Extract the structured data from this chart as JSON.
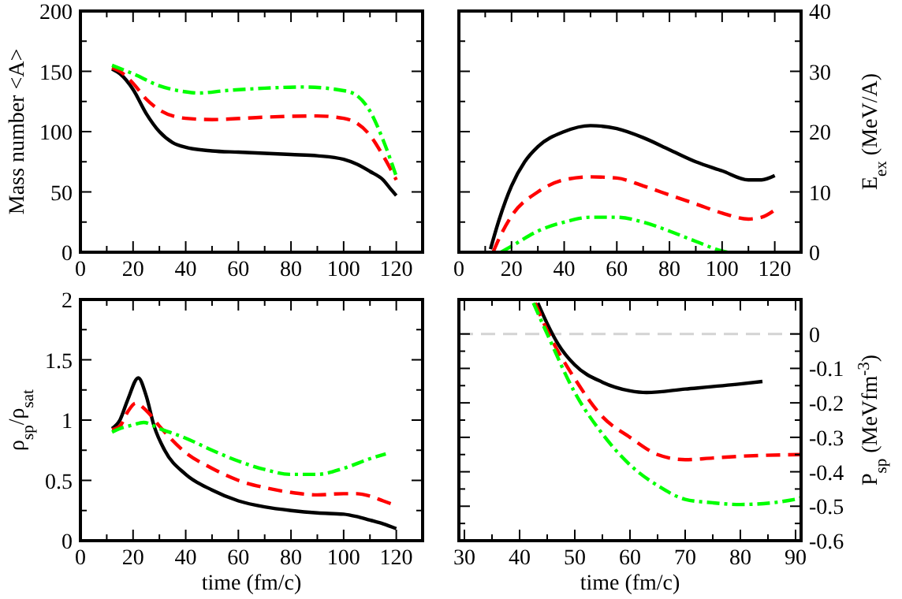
{
  "chart_data": [
    {
      "type": "line",
      "ylabel": "Mass number <A>",
      "xlim": [
        0,
        130
      ],
      "xticks": [
        0,
        20,
        40,
        60,
        80,
        100,
        120
      ],
      "ylim": [
        0,
        200
      ],
      "yticks": [
        0,
        50,
        100,
        150,
        200
      ],
      "grid": false,
      "series": [
        {
          "color": "#000000",
          "line_style": "solid",
          "x": [
            12,
            15,
            20,
            25,
            30,
            35,
            40,
            50,
            60,
            80,
            90,
            100,
            105,
            110,
            115,
            118,
            120
          ],
          "values": [
            152,
            148,
            135,
            115,
            100,
            91,
            87,
            84,
            83,
            81,
            80,
            77,
            73,
            67,
            60,
            52,
            47
          ]
        },
        {
          "color": "#ff0000",
          "line_style": "dashed",
          "x": [
            12,
            15,
            20,
            25,
            30,
            40,
            50,
            70,
            90,
            100,
            105,
            110,
            115,
            120
          ],
          "values": [
            153,
            150,
            140,
            127,
            118,
            111,
            110,
            112,
            113,
            111,
            107,
            97,
            80,
            60
          ]
        },
        {
          "color": "#00ff00",
          "line_style": "dashdot",
          "x": [
            12,
            20,
            30,
            40,
            45,
            55,
            70,
            85,
            100,
            105,
            110,
            115,
            120
          ],
          "values": [
            155,
            148,
            138,
            133,
            132,
            134,
            136,
            137,
            134,
            130,
            117,
            93,
            63
          ]
        }
      ]
    },
    {
      "type": "line",
      "y2label": "E$_{ex}$ (MeV/A)",
      "xlim": [
        0,
        130
      ],
      "xticks": [
        0,
        20,
        40,
        60,
        80,
        100,
        120
      ],
      "y2lim": [
        0,
        40
      ],
      "y2ticks": [
        0,
        10,
        20,
        30,
        40
      ],
      "grid": false,
      "series": [
        {
          "color": "#000000",
          "line_style": "solid",
          "axis": "y2",
          "x": [
            12,
            15,
            20,
            25,
            30,
            40,
            50,
            60,
            70,
            80,
            90,
            100,
            110,
            115,
            120
          ],
          "values": [
            0.5,
            5,
            11,
            15,
            17.5,
            20,
            21,
            20.5,
            19,
            17,
            15,
            13.5,
            12,
            12,
            12.7
          ]
        },
        {
          "color": "#ff0000",
          "line_style": "dashed",
          "axis": "y2",
          "x": [
            13,
            15,
            20,
            30,
            40,
            50,
            60,
            70,
            80,
            90,
            100,
            110,
            115,
            120
          ],
          "values": [
            0,
            2,
            6,
            10,
            12,
            12.5,
            12.3,
            11,
            9.5,
            8,
            6.5,
            5.5,
            5.8,
            7
          ]
        },
        {
          "color": "#00ff00",
          "line_style": "dashdot",
          "axis": "y2",
          "x": [
            16,
            20,
            30,
            40,
            50,
            60,
            70,
            80,
            90,
            100,
            102
          ],
          "values": [
            0,
            1,
            3.5,
            5,
            5.8,
            5.8,
            5,
            3.5,
            1.8,
            0.2,
            0
          ]
        }
      ]
    },
    {
      "type": "line",
      "xlabel": "time (fm/c)",
      "ylabel": "ρ$_{sp}$/ρ$_{sat}$",
      "xlim": [
        0,
        130
      ],
      "xticks": [
        0,
        20,
        40,
        60,
        80,
        100,
        120
      ],
      "ylim": [
        0,
        2
      ],
      "yticks": [
        0,
        0.5,
        1,
        1.5,
        2
      ],
      "grid": false,
      "series": [
        {
          "color": "#000000",
          "line_style": "solid",
          "x": [
            12,
            15,
            18,
            22,
            25,
            28,
            32,
            40,
            50,
            60,
            70,
            80,
            90,
            100,
            105,
            110,
            115,
            120
          ],
          "values": [
            0.93,
            1.0,
            1.17,
            1.35,
            1.2,
            0.95,
            0.75,
            0.55,
            0.42,
            0.33,
            0.28,
            0.25,
            0.23,
            0.22,
            0.2,
            0.17,
            0.14,
            0.1
          ]
        },
        {
          "color": "#ff0000",
          "line_style": "dashed",
          "x": [
            12,
            15,
            18,
            21,
            25,
            30,
            40,
            50,
            60,
            70,
            80,
            90,
            100,
            105,
            110,
            115,
            120
          ],
          "values": [
            0.92,
            0.95,
            1.07,
            1.14,
            1.08,
            0.95,
            0.73,
            0.6,
            0.5,
            0.44,
            0.4,
            0.38,
            0.39,
            0.39,
            0.37,
            0.33,
            0.29
          ]
        },
        {
          "color": "#00ff00",
          "line_style": "dashdot",
          "x": [
            12,
            15,
            20,
            24,
            30,
            40,
            50,
            60,
            70,
            80,
            90,
            100,
            110,
            116
          ],
          "values": [
            0.9,
            0.93,
            0.96,
            0.98,
            0.93,
            0.85,
            0.75,
            0.66,
            0.59,
            0.55,
            0.55,
            0.6,
            0.68,
            0.72
          ]
        }
      ]
    },
    {
      "type": "line",
      "xlabel": "time (fm/c)",
      "y2label": "P$_{sp}$ (MeVfm$^{-3}$)",
      "xlim": [
        29,
        91
      ],
      "xticks": [
        30,
        40,
        50,
        60,
        70,
        80,
        90
      ],
      "y2lim": [
        -0.6,
        0.1
      ],
      "y2ticks": [
        -0.6,
        -0.5,
        -0.4,
        -0.3,
        -0.2,
        -0.1,
        0
      ],
      "grid": false,
      "ref_lines": [
        {
          "axis": "y2",
          "value": 0,
          "color": "#d3d3d3",
          "line_style": "dashed"
        }
      ],
      "series": [
        {
          "color": "#000000",
          "line_style": "solid",
          "axis": "y2",
          "x": [
            43.3,
            45,
            47,
            50,
            55,
            60,
            63,
            70,
            80,
            84
          ],
          "values": [
            0.09,
            0.03,
            -0.03,
            -0.09,
            -0.14,
            -0.165,
            -0.17,
            -0.16,
            -0.145,
            -0.138
          ]
        },
        {
          "color": "#ff0000",
          "line_style": "dashed",
          "axis": "y2",
          "x": [
            42.8,
            45,
            50,
            55,
            60,
            65,
            70,
            75,
            80,
            91
          ],
          "values": [
            0.09,
            0.01,
            -0.13,
            -0.24,
            -0.3,
            -0.35,
            -0.365,
            -0.36,
            -0.355,
            -0.35
          ]
        },
        {
          "color": "#00ff00",
          "line_style": "dashdot",
          "axis": "y2",
          "x": [
            42.5,
            45,
            50,
            55,
            60,
            65,
            70,
            75,
            80,
            90,
            91
          ],
          "values": [
            0.09,
            0,
            -0.17,
            -0.29,
            -0.38,
            -0.44,
            -0.48,
            -0.49,
            -0.495,
            -0.48,
            -0.475
          ]
        }
      ]
    }
  ]
}
